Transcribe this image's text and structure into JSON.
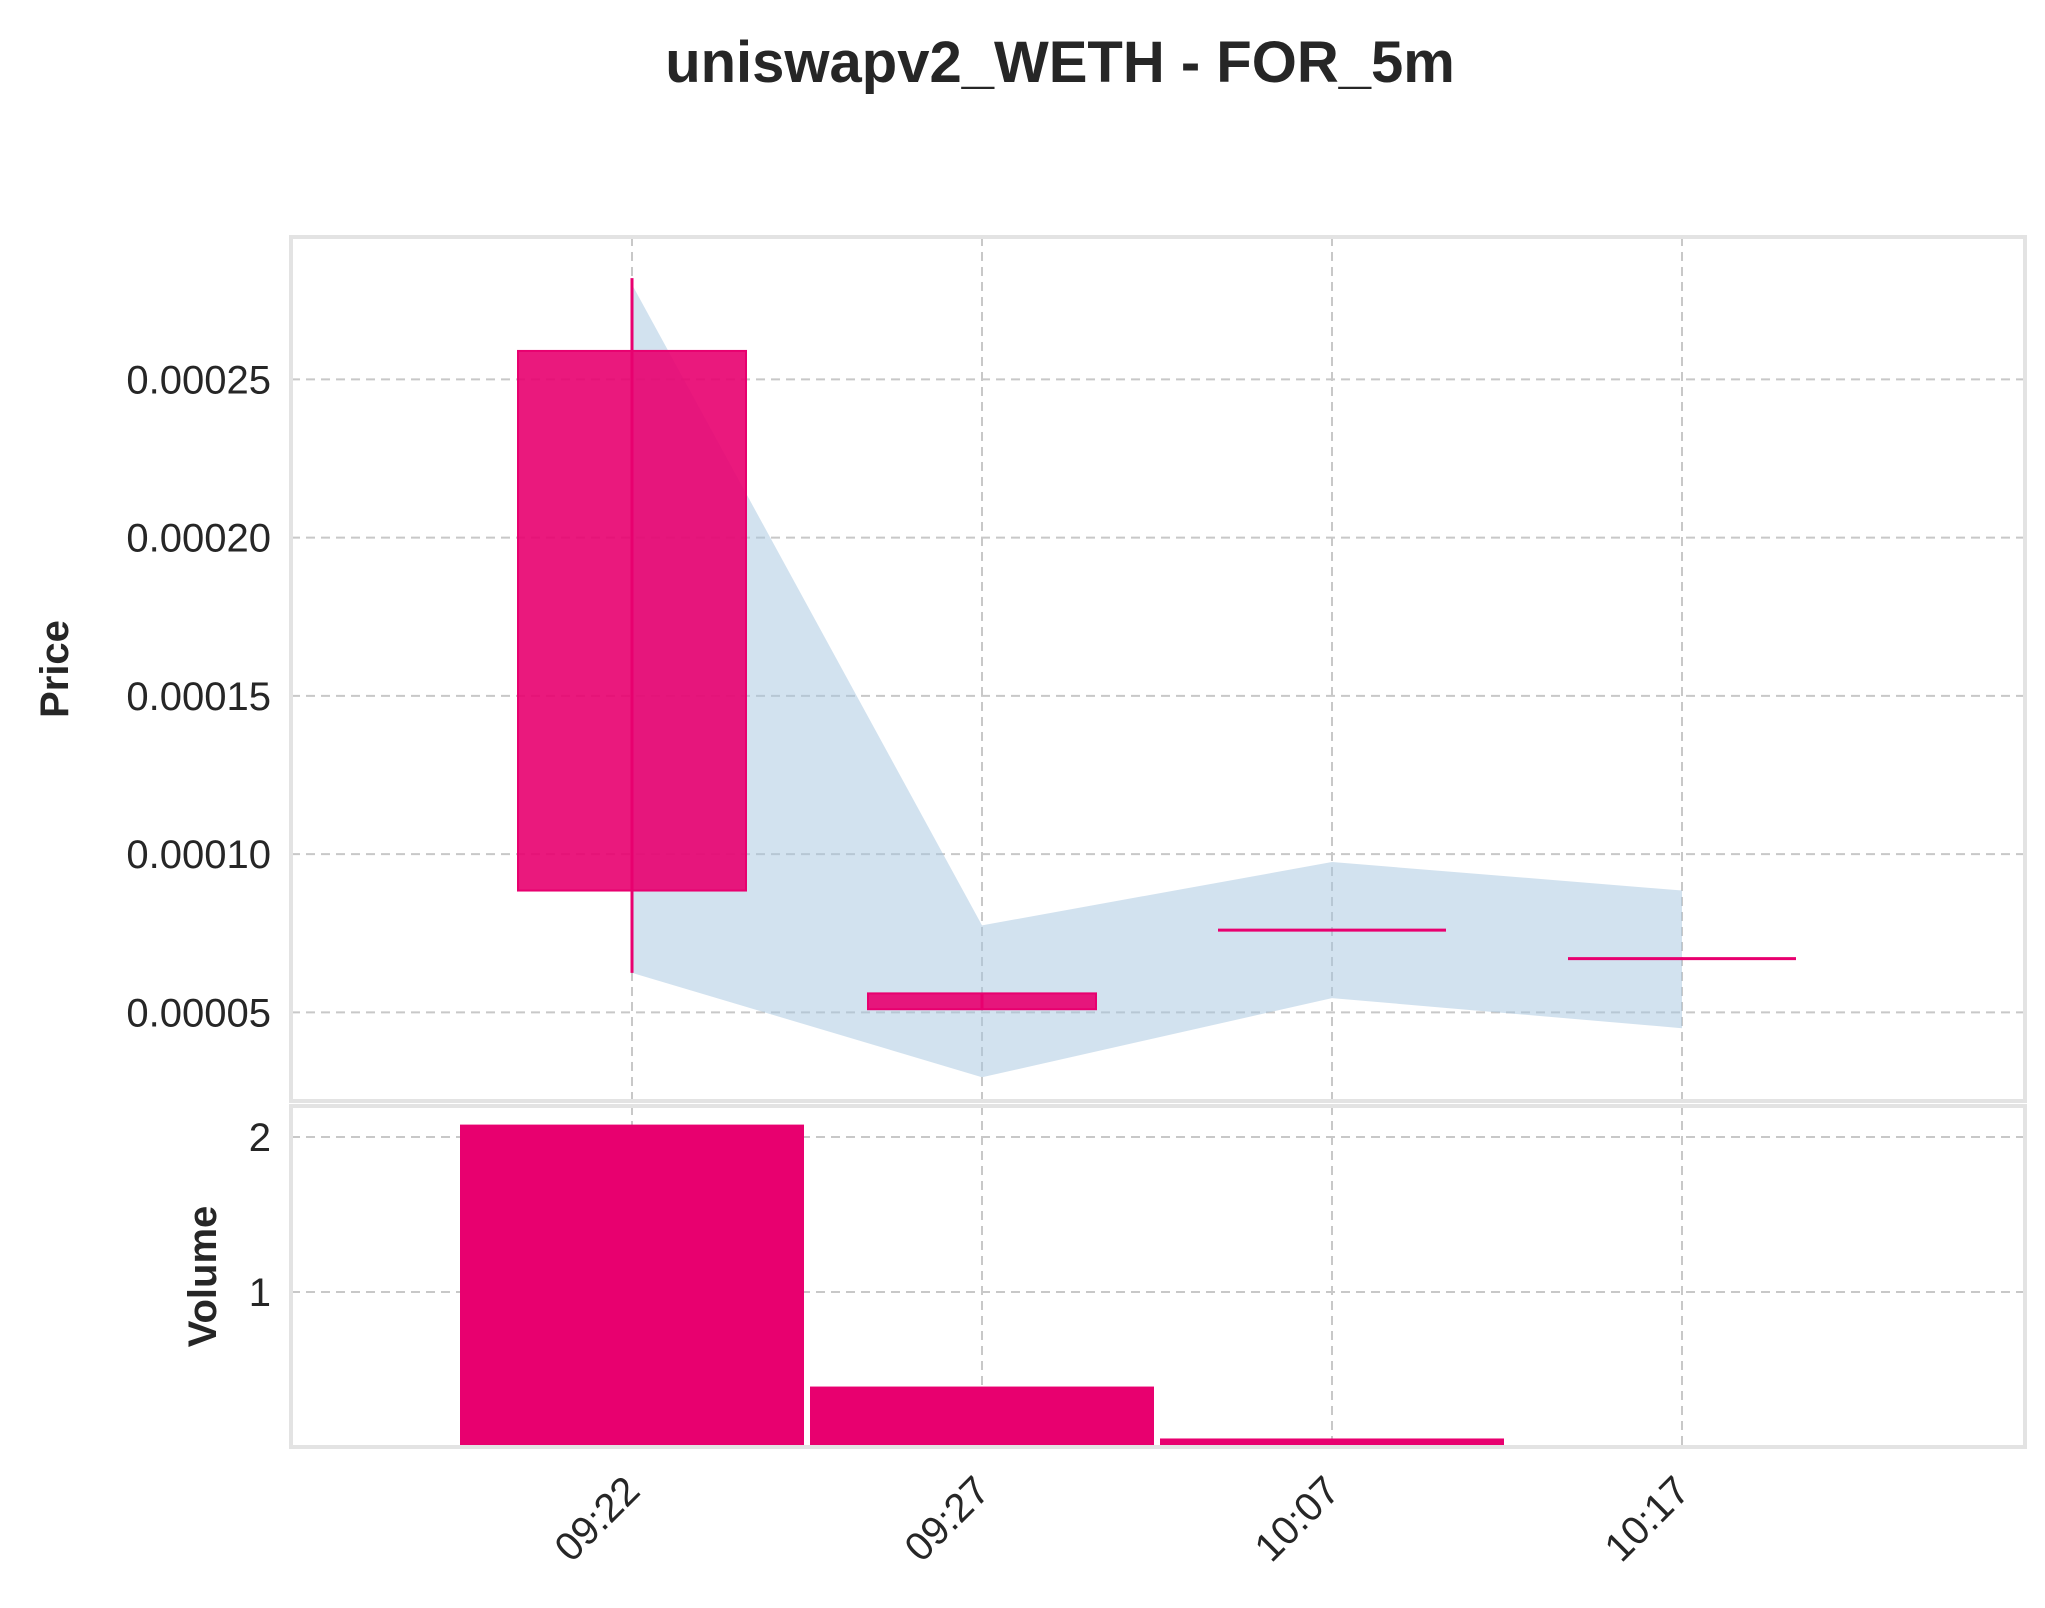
{
  "chart_data": {
    "type": "candlestick",
    "title": "uniswapv2_WETH - FOR_5m",
    "x_labels": [
      "09:22",
      "09:27",
      "10:07",
      "10:17"
    ],
    "price_panel": {
      "ylabel": "Price",
      "ylim": [
        2.2e-05,
        0.000295
      ],
      "yticks": [
        5e-05,
        0.0001,
        0.00015,
        0.0002,
        0.00025
      ],
      "ytick_labels": [
        "0.00005",
        "0.00010",
        "0.00015",
        "0.00020",
        "0.00025"
      ],
      "candles": [
        {
          "label": "09:22",
          "open": 0.000259,
          "high": 0.000282,
          "low": 6.25e-05,
          "close": 8.85e-05
        },
        {
          "label": "09:27",
          "open": 5.6e-05,
          "high": 5.6e-05,
          "low": 5.1e-05,
          "close": 5.1e-05
        },
        {
          "label": "10:07",
          "open": 7.6e-05,
          "high": 7.6e-05,
          "low": 7.6e-05,
          "close": 7.6e-05
        },
        {
          "label": "10:17",
          "open": 6.7e-05,
          "high": 6.7e-05,
          "low": 6.7e-05,
          "close": 6.7e-05
        }
      ],
      "band": {
        "upper": [
          0.00028,
          7.75e-05,
          9.75e-05,
          8.85e-05
        ],
        "lower": [
          6.25e-05,
          2.95e-05,
          5.45e-05,
          4.5e-05
        ]
      }
    },
    "volume_panel": {
      "ylabel": "Volume",
      "ylim": [
        0,
        2.2
      ],
      "yticks": [
        1,
        2
      ],
      "ytick_labels": [
        "1",
        "2"
      ],
      "values": [
        2.08,
        0.39,
        0.055,
        0.012
      ]
    },
    "grid": true,
    "colors": {
      "candle": "#e8006f",
      "band": "#a5c6e0",
      "grid": "#c8c8c8",
      "frame": "#e3e3e3",
      "text": "#262626"
    }
  }
}
